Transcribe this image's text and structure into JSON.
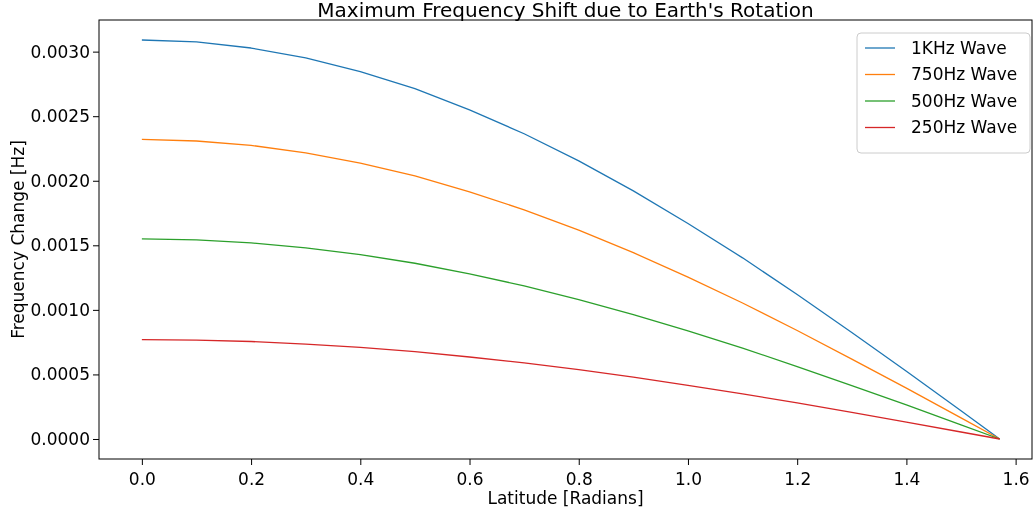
{
  "chart_data": {
    "type": "line",
    "title": "Maximum Frequency Shift due to Earth's Rotation",
    "xlabel": "Latitude [Radians]",
    "ylabel": "Frequency Change [Hz]",
    "x": [
      0,
      0.1,
      0.2,
      0.3,
      0.4,
      0.5,
      0.6,
      0.7,
      0.8,
      0.9,
      1.0,
      1.1,
      1.2,
      1.3,
      1.4,
      1.5,
      1.5708
    ],
    "xlim": [
      -0.0785,
      1.63
    ],
    "ylim": [
      -0.000155,
      0.003245
    ],
    "xticks": [
      {
        "value": 0,
        "label": "0.0"
      },
      {
        "value": 0.2,
        "label": "0.2"
      },
      {
        "value": 0.4,
        "label": "0.4"
      },
      {
        "value": 0.6,
        "label": "0.6"
      },
      {
        "value": 0.8,
        "label": "0.8"
      },
      {
        "value": 1.0,
        "label": "1.0"
      },
      {
        "value": 1.2,
        "label": "1.2"
      },
      {
        "value": 1.4,
        "label": "1.4"
      },
      {
        "value": 1.6,
        "label": "1.6"
      }
    ],
    "yticks": [
      {
        "value": 0,
        "label": "0.0000"
      },
      {
        "value": 0.0005,
        "label": "0.0005"
      },
      {
        "value": 0.001,
        "label": "0.0010"
      },
      {
        "value": 0.0015,
        "label": "0.0015"
      },
      {
        "value": 0.002,
        "label": "0.0020"
      },
      {
        "value": 0.0025,
        "label": "0.0025"
      },
      {
        "value": 0.003,
        "label": "0.0030"
      }
    ],
    "legend": "top right",
    "grid": false,
    "marker": "none",
    "line_style": "solid",
    "series": [
      {
        "name": "1KHz Wave",
        "color": "#1f77b4",
        "values": [
          0.00309,
          0.003075,
          0.003028,
          0.002951,
          0.002846,
          0.002713,
          0.002549,
          0.002364,
          0.002154,
          0.001922,
          0.001669,
          0.001403,
          0.001119,
          0.000825,
          0.000525,
          0.000218,
          0
        ]
      },
      {
        "name": "750Hz Wave",
        "color": "#ff7f0e",
        "values": [
          0.00232,
          0.002308,
          0.002274,
          0.002216,
          0.002137,
          0.002037,
          0.001914,
          0.001775,
          0.001617,
          0.001443,
          0.001253,
          0.001053,
          0.00084,
          0.000619,
          0.000394,
          0.000164,
          0
        ]
      },
      {
        "name": "500Hz Wave",
        "color": "#2ca02c",
        "values": [
          0.00155,
          0.001542,
          0.001519,
          0.00148,
          0.001428,
          0.001361,
          0.001279,
          0.001186,
          0.00108,
          0.000964,
          0.000837,
          0.000704,
          0.000561,
          0.000414,
          0.000264,
          0.00011,
          0
        ]
      },
      {
        "name": "250Hz Wave",
        "color": "#d62728",
        "values": [
          0.00077,
          0.000766,
          0.000755,
          0.000735,
          0.000709,
          0.000676,
          0.000635,
          0.000589,
          0.000537,
          0.000479,
          0.000416,
          0.00035,
          0.000279,
          0.000206,
          0.000131,
          5.4e-05,
          0
        ]
      }
    ]
  }
}
